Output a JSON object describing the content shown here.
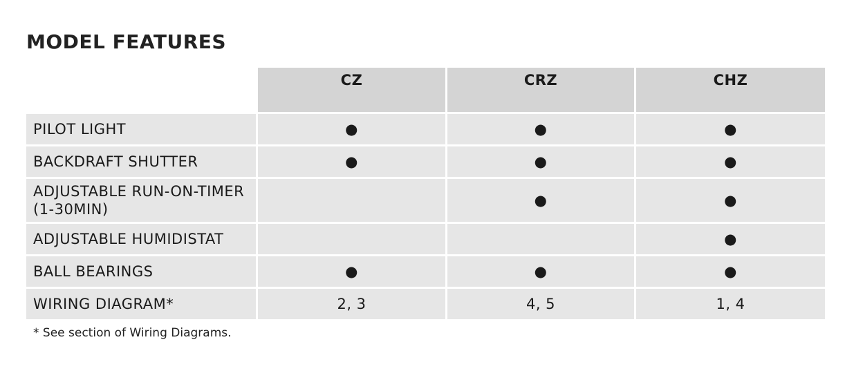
{
  "header": {
    "title": "MODEL FEATURES"
  },
  "table": {
    "columns": [
      "CZ",
      "CRZ",
      "CHZ"
    ],
    "rows": [
      [
        "PILOT LIGHT",
        "●",
        "●",
        "●"
      ],
      [
        "BACKDRAFT SHUTTER",
        "●",
        "●",
        "●"
      ],
      [
        "ADJUSTABLE RUN-ON-TIMER (1-30MIN)",
        null,
        "●",
        "●"
      ],
      [
        "ADJUSTABLE HUMIDISTAT",
        null,
        null,
        "●"
      ],
      [
        "BALL BEARINGS",
        "●",
        "●",
        "●"
      ],
      [
        "WIRING DIAGRAM*",
        "2, 3",
        "4, 5",
        "1, 4"
      ]
    ]
  },
  "footnote": "* See section of Wiring Diagrams."
}
